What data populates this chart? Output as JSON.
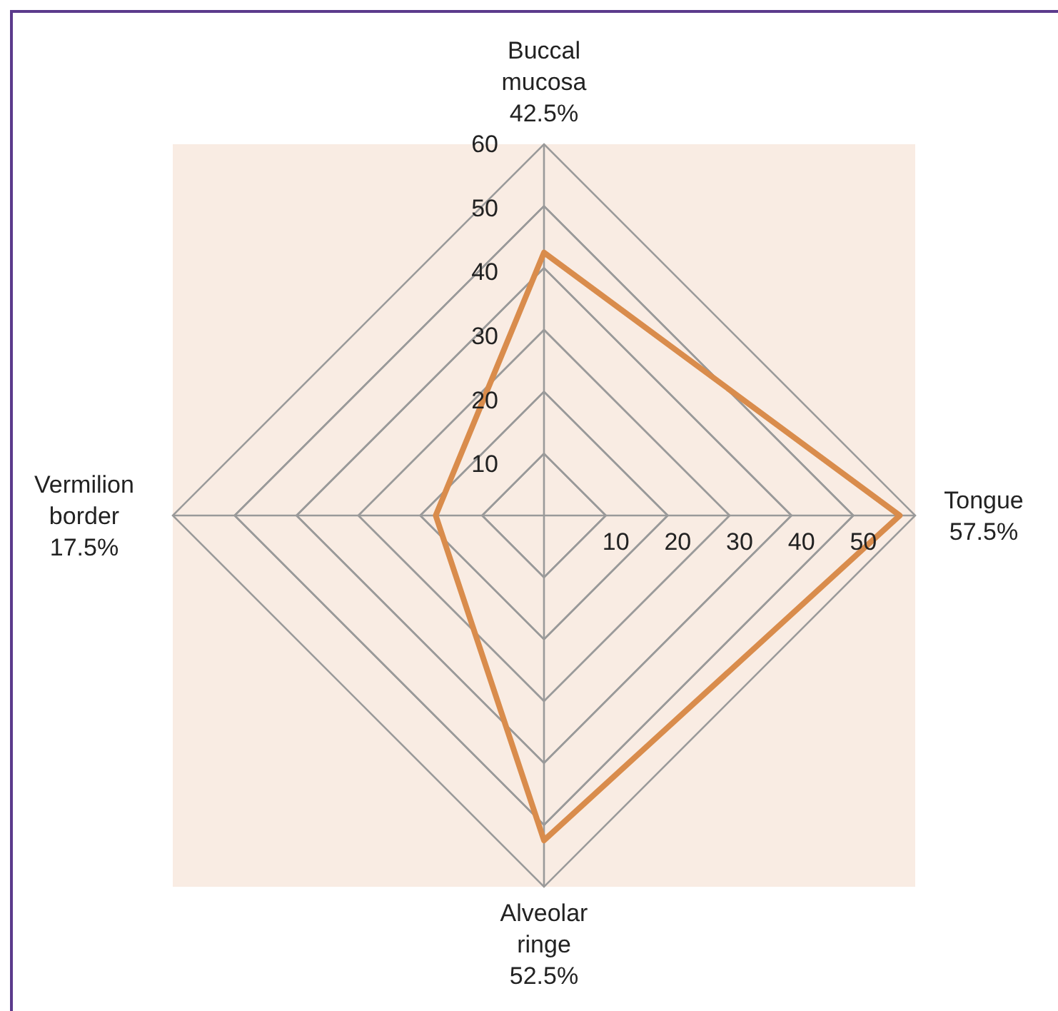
{
  "chart_data": {
    "type": "radar",
    "categories": [
      "Buccal mucosa",
      "Tongue",
      "Alveolar ringe",
      "Vermilion border"
    ],
    "series": [
      {
        "color": "#d98c4c",
        "values": [
          42.5,
          57.5,
          52.5,
          17.5
        ]
      }
    ],
    "value_labels": [
      "42.5%",
      "57.5%",
      "52.5%",
      "17.5%"
    ],
    "ylim": [
      0,
      60
    ],
    "yticks": [
      10,
      20,
      30,
      40,
      50,
      60,
      10,
      20,
      30,
      40,
      50
    ],
    "grid": true
  }
}
